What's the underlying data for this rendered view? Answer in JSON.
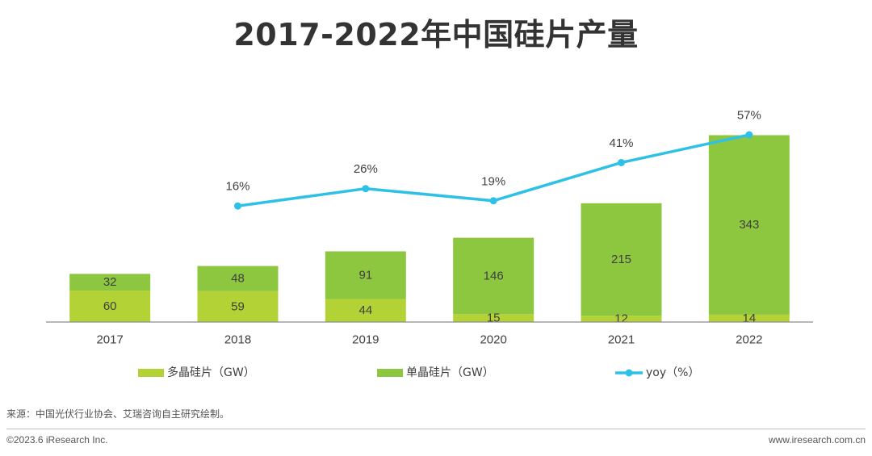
{
  "chart_data": {
    "type": "bar",
    "title": "2017-2022年中国硅片产量",
    "categories": [
      "2017",
      "2018",
      "2019",
      "2020",
      "2021",
      "2022"
    ],
    "stacked": true,
    "series": [
      {
        "name": "多晶硅片（GW）",
        "values": [
          60,
          59,
          44,
          15,
          12,
          14
        ],
        "color": "#b2d235"
      },
      {
        "name": "单晶硅片（GW）",
        "values": [
          32,
          48,
          91,
          146,
          215,
          343
        ],
        "color": "#8dc63f"
      }
    ],
    "line_series": {
      "name": "yoy（%）",
      "values": [
        null,
        16,
        26,
        19,
        41,
        57
      ],
      "labels": [
        "",
        "16%",
        "26%",
        "19%",
        "41%",
        "57%"
      ],
      "color": "#2ec0e6"
    },
    "legend_position": "bottom",
    "grid": false
  },
  "footer": {
    "source": "来源：中国光伏行业协会、艾瑞咨询自主研究绘制。",
    "copyright": "©2023.6 iResearch Inc.",
    "website": "www.iresearch.com.cn"
  }
}
